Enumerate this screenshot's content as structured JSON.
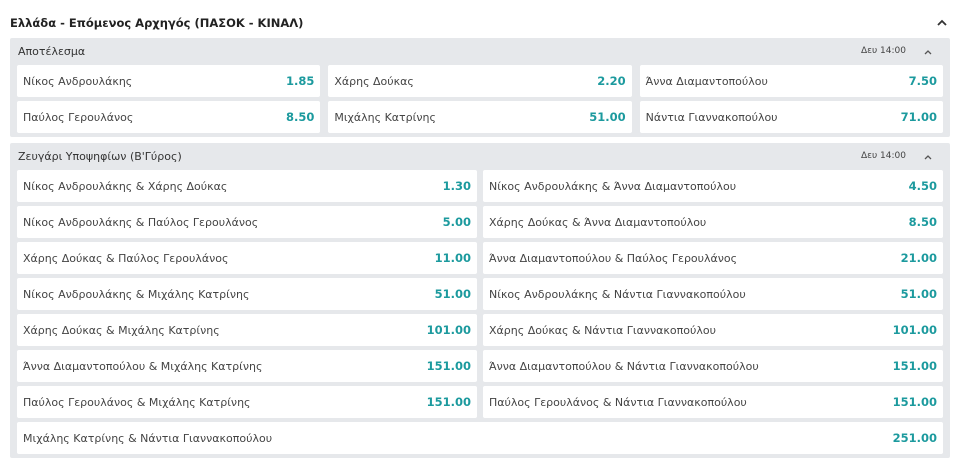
{
  "header": {
    "title": "Ελλάδα - Επόμενος Αρχηγός (ΠΑΣΟΚ - ΚΙΝΑΛ)"
  },
  "sections": [
    {
      "title": "Αποτέλεσμα",
      "time": "Δευ 14:00",
      "columns": 3,
      "rows": [
        [
          {
            "label": "Νίκος Ανδρουλάκης",
            "odds": "1.85"
          },
          {
            "label": "Χάρης Δούκας",
            "odds": "2.20"
          },
          {
            "label": "Άννα Διαμαντοπούλου",
            "odds": "7.50"
          }
        ],
        [
          {
            "label": "Παύλος Γερουλάνος",
            "odds": "8.50"
          },
          {
            "label": "Μιχάλης Κατρίνης",
            "odds": "51.00"
          },
          {
            "label": "Νάντια Γιαννακοπούλου",
            "odds": "71.00"
          }
        ]
      ]
    },
    {
      "title": "Ζευγάρι Υποψηφίων (Β'Γύρος)",
      "time": "Δευ 14:00",
      "columns": 2,
      "rows": [
        [
          {
            "label": "Νίκος Ανδρουλάκης & Χάρης Δούκας",
            "odds": "1.30"
          },
          {
            "label": "Νίκος Ανδρουλάκης & Άννα Διαμαντοπούλου",
            "odds": "4.50"
          }
        ],
        [
          {
            "label": "Νίκος Ανδρουλάκης & Παύλος Γερουλάνος",
            "odds": "5.00"
          },
          {
            "label": "Χάρης Δούκας & Άννα Διαμαντοπούλου",
            "odds": "8.50"
          }
        ],
        [
          {
            "label": "Χάρης Δούκας & Παύλος Γερουλάνος",
            "odds": "11.00"
          },
          {
            "label": "Άννα Διαμαντοπούλου & Παύλος Γερουλάνος",
            "odds": "21.00"
          }
        ],
        [
          {
            "label": "Νίκος Ανδρουλάκης & Μιχάλης Κατρίνης",
            "odds": "51.00"
          },
          {
            "label": "Νίκος Ανδρουλάκης & Νάντια Γιαννακοπούλου",
            "odds": "51.00"
          }
        ],
        [
          {
            "label": "Χάρης Δούκας & Μιχάλης Κατρίνης",
            "odds": "101.00"
          },
          {
            "label": "Χάρης Δούκας & Νάντια Γιαννακοπούλου",
            "odds": "101.00"
          }
        ],
        [
          {
            "label": "Άννα Διαμαντοπούλου & Μιχάλης Κατρίνης",
            "odds": "151.00"
          },
          {
            "label": "Άννα Διαμαντοπούλου & Νάντια Γιαννακοπούλου",
            "odds": "151.00"
          }
        ],
        [
          {
            "label": "Παύλος Γερουλάνος & Μιχάλης Κατρίνης",
            "odds": "151.00"
          },
          {
            "label": "Παύλος Γερουλάνος & Νάντια Γιαννακοπούλου",
            "odds": "151.00"
          }
        ],
        [
          {
            "label": "Μιχάλης Κατρίνης & Νάντια Γιαννακοπούλου",
            "odds": "251.00"
          }
        ]
      ]
    }
  ]
}
